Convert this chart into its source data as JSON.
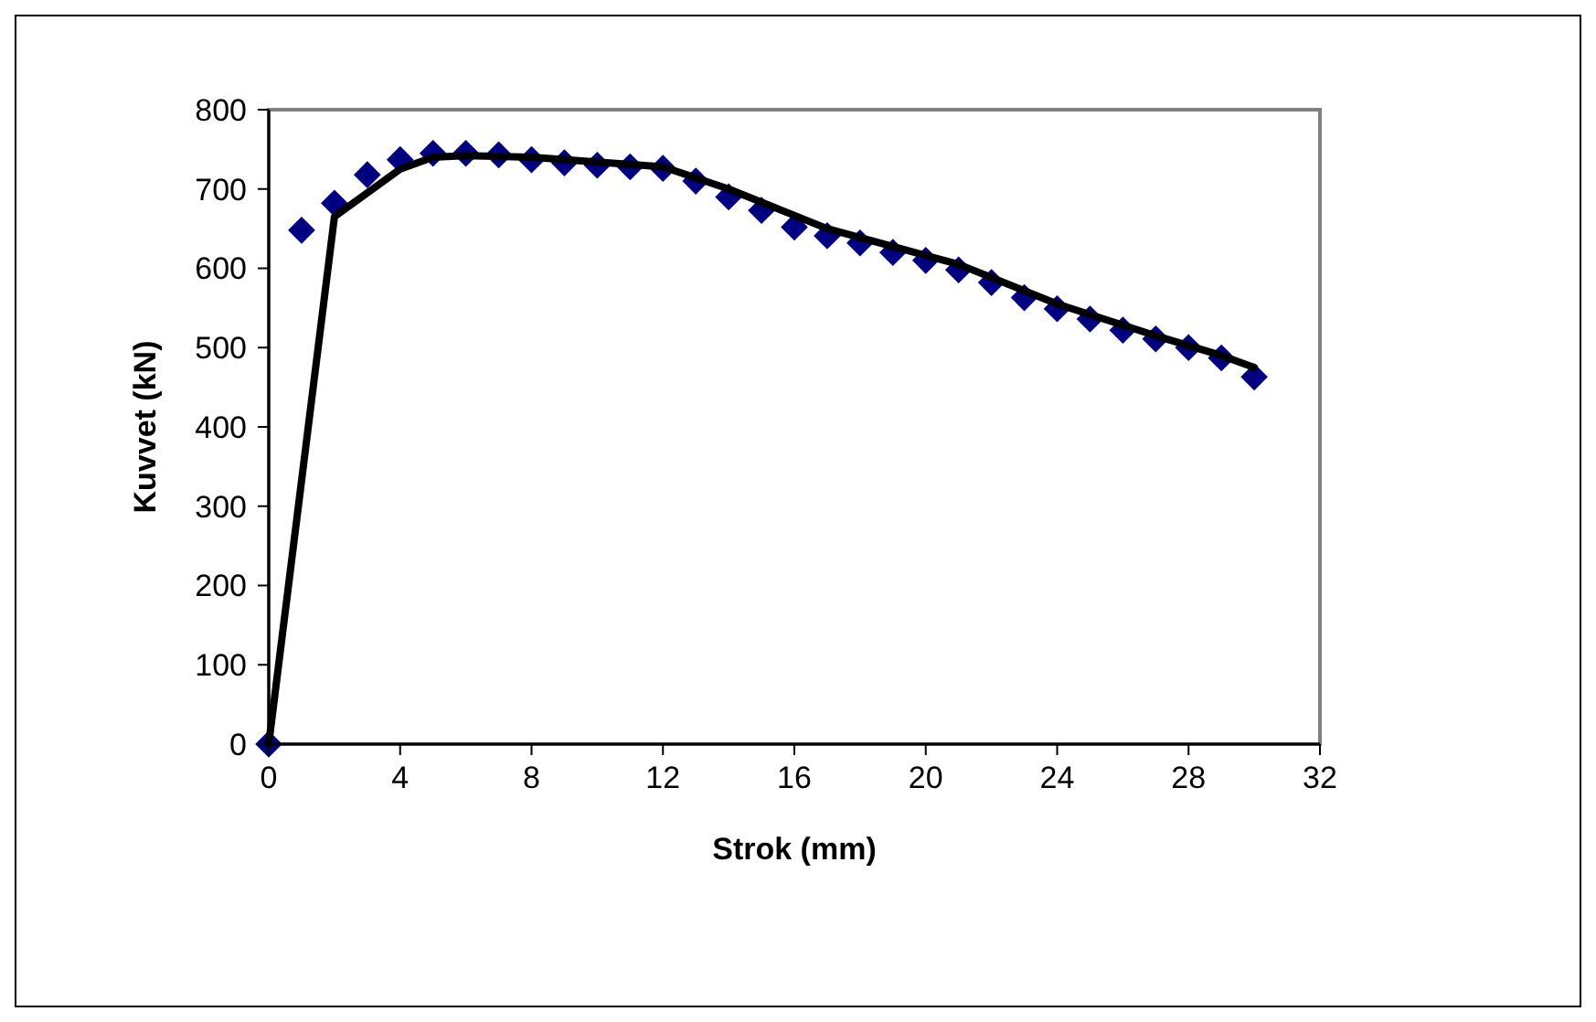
{
  "chart_data": {
    "type": "scatter",
    "xlabel": "Strok (mm)",
    "ylabel": "Kuvvet (kN)",
    "xlim": [
      0,
      32
    ],
    "ylim": [
      0,
      800
    ],
    "xticks": [
      0,
      4,
      8,
      12,
      16,
      20,
      24,
      28,
      32
    ],
    "yticks": [
      0,
      100,
      200,
      300,
      400,
      500,
      600,
      700,
      800
    ],
    "grid": false,
    "series": [
      {
        "color": "#000080",
        "marker": "diamond",
        "x": [
          0,
          1,
          2,
          3,
          4,
          5,
          6,
          7,
          8,
          9,
          10,
          11,
          12,
          13,
          14,
          15,
          16,
          17,
          18,
          19,
          20,
          21,
          22,
          23,
          24,
          25,
          26,
          27,
          28,
          29,
          30
        ],
        "values": [
          0,
          648,
          682,
          718,
          737,
          745,
          745,
          743,
          737,
          733,
          730,
          728,
          726,
          710,
          690,
          673,
          652,
          641,
          632,
          620,
          610,
          598,
          582,
          563,
          549,
          536,
          522,
          511,
          500,
          487,
          463
        ]
      },
      {
        "type": "line",
        "color": "#000000",
        "marker": "none",
        "line_style": "solid",
        "x": [
          0,
          2,
          3,
          4,
          5,
          6,
          8,
          12,
          14,
          17,
          21,
          24,
          27,
          29,
          30
        ],
        "values": [
          0,
          665,
          695,
          725,
          740,
          742,
          740,
          728,
          700,
          650,
          605,
          555,
          515,
          490,
          475
        ]
      }
    ]
  }
}
